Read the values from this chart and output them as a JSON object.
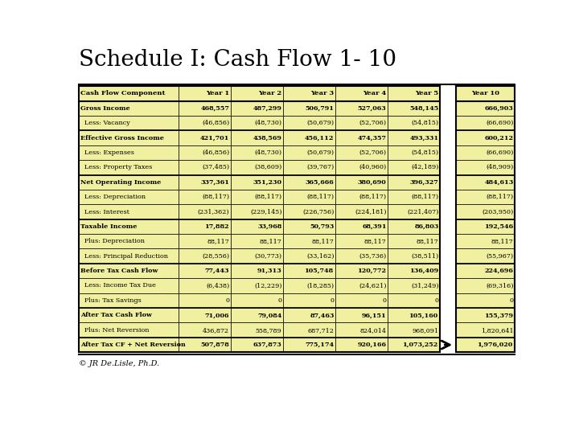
{
  "title": "Schedule I: Cash Flow 1- 10",
  "copyright": "© JR De.Lisle, Ph.D.",
  "bg_color": "#ffffff",
  "table_bg": "#f0f0a0",
  "border_color": "#000000",
  "headers": [
    "Cash Flow Component",
    "Year 1",
    "Year 2",
    "Year 3",
    "Year 4",
    "Year 5",
    "Year 10"
  ],
  "rows": [
    [
      "Gross Income",
      "468,557",
      "487,299",
      "506,791",
      "527,063",
      "548,145",
      "666,903"
    ],
    [
      "  Less: Vacancy",
      "(46,856)",
      "(48,730)",
      "(50,679)",
      "(52,706)",
      "(54,815)",
      "(66,690)"
    ],
    [
      "Effective Gross Income",
      "421,701",
      "438,569",
      "456,112",
      "474,357",
      "493,331",
      "600,212"
    ],
    [
      "  Less: Expenses",
      "(46,856)",
      "(48,730)",
      "(50,679)",
      "(52,706)",
      "(54,815)",
      "(66,690)"
    ],
    [
      "  Less: Property Taxes",
      "(37,485)",
      "(38,609)",
      "(39,767)",
      "(40,960)",
      "(42,189)",
      "(48,909)"
    ],
    [
      "Net Operating Income",
      "337,361",
      "351,230",
      "365,666",
      "380,690",
      "396,327",
      "484,613"
    ],
    [
      "  Less: Depreciation",
      "(88,117)",
      "(88,117)",
      "(88,117)",
      "(88,117)",
      "(88,117)",
      "(88,117)"
    ],
    [
      "  Less: Interest",
      "(231,362)",
      "(229,145)",
      "(226,756)",
      "(224,181)",
      "(221,407)",
      "(203,950)"
    ],
    [
      "Taxable Income",
      "17,882",
      "33,968",
      "50,793",
      "68,391",
      "86,803",
      "192,546"
    ],
    [
      "  Plus: Depreciation",
      "88,117",
      "88,117",
      "88,117",
      "88,117",
      "88,117",
      "88,117"
    ],
    [
      "  Less: Principal Reduction",
      "(28,556)",
      "(30,773)",
      "(33,162)",
      "(35,736)",
      "(38,511)",
      "(55,967)"
    ],
    [
      "Before Tax Cash Flow",
      "77,443",
      "91,313",
      "105,748",
      "120,772",
      "136,409",
      "224,696"
    ],
    [
      "  Less: Income Tax Due",
      "(6,438)",
      "(12,229)",
      "(18,285)",
      "(24,621)",
      "(31,249)",
      "(69,316)"
    ],
    [
      "  Plus: Tax Savings",
      "0",
      "0",
      "0",
      "0",
      "0",
      "0"
    ],
    [
      "After Tax Cash Flow",
      "71,006",
      "79,084",
      "87,463",
      "96,151",
      "105,160",
      "155,379"
    ],
    [
      "  Plus: Net Reversion",
      "436,872",
      "558,789",
      "687,712",
      "824,014",
      "968,091",
      "1,820,641"
    ],
    [
      "After Tax CF + Net Reversion",
      "507,878",
      "637,873",
      "775,174",
      "920,166",
      "1,073,252",
      "1,976,020"
    ]
  ],
  "bold_rows": [
    0,
    2,
    5,
    8,
    11,
    14,
    16
  ],
  "title_fontsize": 20,
  "header_fontsize": 6.0,
  "cell_fontsize": 5.8
}
